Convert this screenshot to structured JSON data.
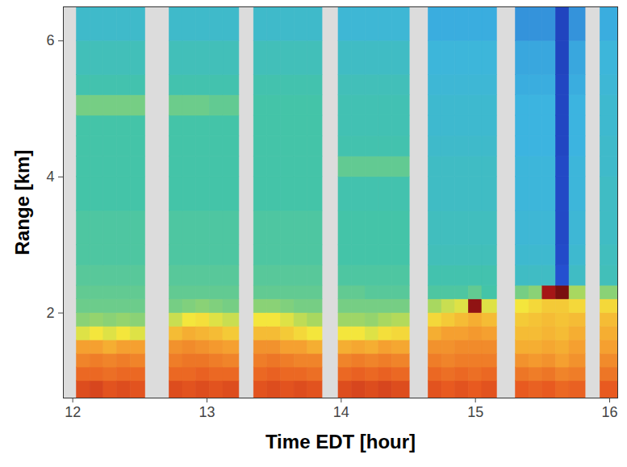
{
  "chart_data": {
    "type": "heatmap",
    "xlabel": "Time EDT [hour]",
    "ylabel": "Range [km]",
    "xlim": [
      11.93,
      16.06
    ],
    "xticks": [
      12,
      13,
      14,
      15,
      16
    ],
    "ylim": [
      0.75,
      6.5
    ],
    "yticks": [
      2,
      4,
      6
    ],
    "cells": {
      "color_domain": [
        0,
        1
      ],
      "range_edges": [
        0.75,
        1.0,
        1.2,
        1.4,
        1.6,
        1.8,
        2.0,
        2.2,
        2.4,
        2.7,
        3.0,
        3.5,
        4.0,
        4.3,
        4.6,
        4.9,
        5.2,
        5.5,
        6.0,
        6.5
      ],
      "time_bins": [
        [
          12.03,
          12.13
        ],
        [
          12.13,
          12.23
        ],
        [
          12.23,
          12.33
        ],
        [
          12.33,
          12.43
        ],
        [
          12.43,
          12.54
        ],
        [
          12.72,
          12.82
        ],
        [
          12.82,
          12.92
        ],
        [
          12.92,
          13.02
        ],
        [
          13.02,
          13.12
        ],
        [
          13.12,
          13.24
        ],
        [
          13.35,
          13.45
        ],
        [
          13.45,
          13.55
        ],
        [
          13.55,
          13.65
        ],
        [
          13.65,
          13.75
        ],
        [
          13.75,
          13.86
        ],
        [
          13.98,
          14.08
        ],
        [
          14.08,
          14.18
        ],
        [
          14.18,
          14.28
        ],
        [
          14.28,
          14.38
        ],
        [
          14.38,
          14.51
        ],
        [
          14.65,
          14.75
        ],
        [
          14.75,
          14.85
        ],
        [
          14.85,
          14.95
        ],
        [
          14.95,
          15.05
        ],
        [
          15.05,
          15.16
        ],
        [
          15.3,
          15.4
        ],
        [
          15.4,
          15.5
        ],
        [
          15.5,
          15.6
        ],
        [
          15.6,
          15.7
        ],
        [
          15.7,
          15.82
        ],
        [
          15.93,
          16.06
        ]
      ],
      "values": [
        [
          0.84,
          0.8,
          0.76,
          0.72,
          0.6,
          0.52,
          0.49,
          0.48,
          0.47,
          0.46,
          0.46,
          0.45,
          0.45,
          0.45,
          0.45,
          0.5,
          0.44,
          0.42,
          0.39
        ],
        [
          0.85,
          0.8,
          0.77,
          0.72,
          0.62,
          0.53,
          0.49,
          0.48,
          0.47,
          0.46,
          0.46,
          0.45,
          0.45,
          0.45,
          0.45,
          0.5,
          0.44,
          0.42,
          0.39
        ],
        [
          0.83,
          0.79,
          0.76,
          0.7,
          0.6,
          0.52,
          0.49,
          0.48,
          0.47,
          0.46,
          0.46,
          0.45,
          0.45,
          0.45,
          0.45,
          0.5,
          0.44,
          0.42,
          0.39
        ],
        [
          0.84,
          0.8,
          0.77,
          0.72,
          0.62,
          0.53,
          0.49,
          0.48,
          0.47,
          0.46,
          0.46,
          0.45,
          0.45,
          0.45,
          0.45,
          0.5,
          0.44,
          0.42,
          0.39
        ],
        [
          0.83,
          0.8,
          0.76,
          0.72,
          0.6,
          0.52,
          0.49,
          0.48,
          0.47,
          0.46,
          0.46,
          0.45,
          0.45,
          0.45,
          0.45,
          0.5,
          0.44,
          0.42,
          0.39
        ],
        [
          0.84,
          0.8,
          0.77,
          0.74,
          0.68,
          0.58,
          0.5,
          0.48,
          0.47,
          0.46,
          0.46,
          0.45,
          0.45,
          0.45,
          0.45,
          0.49,
          0.44,
          0.42,
          0.39
        ],
        [
          0.83,
          0.8,
          0.78,
          0.75,
          0.7,
          0.62,
          0.51,
          0.48,
          0.47,
          0.46,
          0.46,
          0.45,
          0.45,
          0.45,
          0.45,
          0.49,
          0.44,
          0.42,
          0.39
        ],
        [
          0.84,
          0.81,
          0.78,
          0.74,
          0.69,
          0.63,
          0.52,
          0.48,
          0.47,
          0.46,
          0.46,
          0.45,
          0.45,
          0.45,
          0.45,
          0.49,
          0.44,
          0.42,
          0.39
        ],
        [
          0.83,
          0.8,
          0.77,
          0.73,
          0.68,
          0.6,
          0.51,
          0.48,
          0.47,
          0.46,
          0.46,
          0.45,
          0.45,
          0.45,
          0.45,
          0.48,
          0.44,
          0.42,
          0.39
        ],
        [
          0.84,
          0.8,
          0.76,
          0.72,
          0.66,
          0.58,
          0.5,
          0.48,
          0.47,
          0.46,
          0.46,
          0.45,
          0.45,
          0.45,
          0.45,
          0.48,
          0.44,
          0.42,
          0.39
        ],
        [
          0.83,
          0.8,
          0.77,
          0.74,
          0.68,
          0.62,
          0.52,
          0.48,
          0.47,
          0.46,
          0.46,
          0.45,
          0.45,
          0.45,
          0.45,
          0.45,
          0.44,
          0.42,
          0.39
        ],
        [
          0.84,
          0.81,
          0.78,
          0.74,
          0.68,
          0.62,
          0.52,
          0.48,
          0.47,
          0.46,
          0.46,
          0.45,
          0.45,
          0.45,
          0.45,
          0.45,
          0.44,
          0.42,
          0.39
        ],
        [
          0.83,
          0.8,
          0.77,
          0.72,
          0.66,
          0.6,
          0.51,
          0.48,
          0.47,
          0.46,
          0.46,
          0.45,
          0.45,
          0.45,
          0.45,
          0.45,
          0.44,
          0.42,
          0.39
        ],
        [
          0.84,
          0.8,
          0.76,
          0.72,
          0.64,
          0.57,
          0.5,
          0.48,
          0.47,
          0.46,
          0.46,
          0.45,
          0.45,
          0.45,
          0.45,
          0.45,
          0.44,
          0.42,
          0.39
        ],
        [
          0.83,
          0.79,
          0.76,
          0.7,
          0.62,
          0.55,
          0.5,
          0.48,
          0.47,
          0.46,
          0.46,
          0.45,
          0.45,
          0.45,
          0.45,
          0.45,
          0.44,
          0.42,
          0.39
        ],
        [
          0.84,
          0.8,
          0.76,
          0.7,
          0.62,
          0.54,
          0.5,
          0.48,
          0.46,
          0.45,
          0.45,
          0.44,
          0.48,
          0.44,
          0.43,
          0.43,
          0.42,
          0.4,
          0.37
        ],
        [
          0.85,
          0.81,
          0.77,
          0.71,
          0.62,
          0.54,
          0.5,
          0.48,
          0.46,
          0.45,
          0.45,
          0.44,
          0.48,
          0.44,
          0.43,
          0.43,
          0.42,
          0.4,
          0.37
        ],
        [
          0.84,
          0.8,
          0.76,
          0.7,
          0.6,
          0.53,
          0.5,
          0.47,
          0.46,
          0.45,
          0.45,
          0.44,
          0.48,
          0.44,
          0.43,
          0.43,
          0.42,
          0.4,
          0.37
        ],
        [
          0.85,
          0.81,
          0.77,
          0.72,
          0.63,
          0.55,
          0.5,
          0.47,
          0.46,
          0.45,
          0.45,
          0.44,
          0.48,
          0.44,
          0.43,
          0.43,
          0.42,
          0.4,
          0.37
        ],
        [
          0.84,
          0.8,
          0.76,
          0.71,
          0.64,
          0.56,
          0.5,
          0.47,
          0.46,
          0.45,
          0.45,
          0.44,
          0.48,
          0.44,
          0.43,
          0.43,
          0.42,
          0.4,
          0.37
        ],
        [
          0.83,
          0.8,
          0.77,
          0.74,
          0.7,
          0.64,
          0.55,
          0.46,
          0.44,
          0.42,
          0.41,
          0.4,
          0.4,
          0.39,
          0.38,
          0.38,
          0.37,
          0.36,
          0.34
        ],
        [
          0.82,
          0.79,
          0.76,
          0.74,
          0.72,
          0.66,
          0.58,
          0.46,
          0.44,
          0.42,
          0.41,
          0.4,
          0.4,
          0.39,
          0.38,
          0.38,
          0.37,
          0.36,
          0.34
        ],
        [
          0.83,
          0.8,
          0.77,
          0.75,
          0.72,
          0.68,
          0.6,
          0.46,
          0.44,
          0.42,
          0.41,
          0.4,
          0.4,
          0.39,
          0.38,
          0.38,
          0.37,
          0.36,
          0.34
        ],
        [
          0.82,
          0.79,
          0.77,
          0.75,
          0.73,
          0.7,
          0.95,
          0.48,
          0.44,
          0.42,
          0.41,
          0.4,
          0.4,
          0.39,
          0.38,
          0.38,
          0.37,
          0.36,
          0.34
        ],
        [
          0.83,
          0.8,
          0.77,
          0.75,
          0.72,
          0.68,
          0.6,
          0.45,
          0.44,
          0.42,
          0.41,
          0.4,
          0.4,
          0.39,
          0.38,
          0.38,
          0.37,
          0.36,
          0.34
        ],
        [
          0.82,
          0.78,
          0.74,
          0.7,
          0.68,
          0.66,
          0.62,
          0.5,
          0.4,
          0.38,
          0.37,
          0.36,
          0.36,
          0.35,
          0.35,
          0.35,
          0.34,
          0.33,
          0.3
        ],
        [
          0.81,
          0.77,
          0.73,
          0.7,
          0.68,
          0.67,
          0.64,
          0.52,
          0.4,
          0.38,
          0.37,
          0.36,
          0.36,
          0.35,
          0.35,
          0.35,
          0.34,
          0.33,
          0.3
        ],
        [
          0.82,
          0.78,
          0.74,
          0.71,
          0.69,
          0.68,
          0.66,
          0.93,
          0.4,
          0.38,
          0.37,
          0.36,
          0.36,
          0.35,
          0.35,
          0.35,
          0.34,
          0.33,
          0.3
        ],
        [
          0.8,
          0.76,
          0.72,
          0.7,
          0.68,
          0.67,
          0.66,
          0.97,
          0.2,
          0.18,
          0.17,
          0.17,
          0.17,
          0.16,
          0.16,
          0.16,
          0.16,
          0.15,
          0.15
        ],
        [
          0.81,
          0.77,
          0.74,
          0.72,
          0.7,
          0.68,
          0.64,
          0.55,
          0.4,
          0.38,
          0.37,
          0.36,
          0.36,
          0.35,
          0.35,
          0.35,
          0.34,
          0.33,
          0.3
        ],
        [
          0.82,
          0.78,
          0.75,
          0.72,
          0.7,
          0.68,
          0.64,
          0.52,
          0.42,
          0.41,
          0.4,
          0.4,
          0.39,
          0.39,
          0.38,
          0.38,
          0.37,
          0.36,
          0.34
        ]
      ]
    }
  }
}
